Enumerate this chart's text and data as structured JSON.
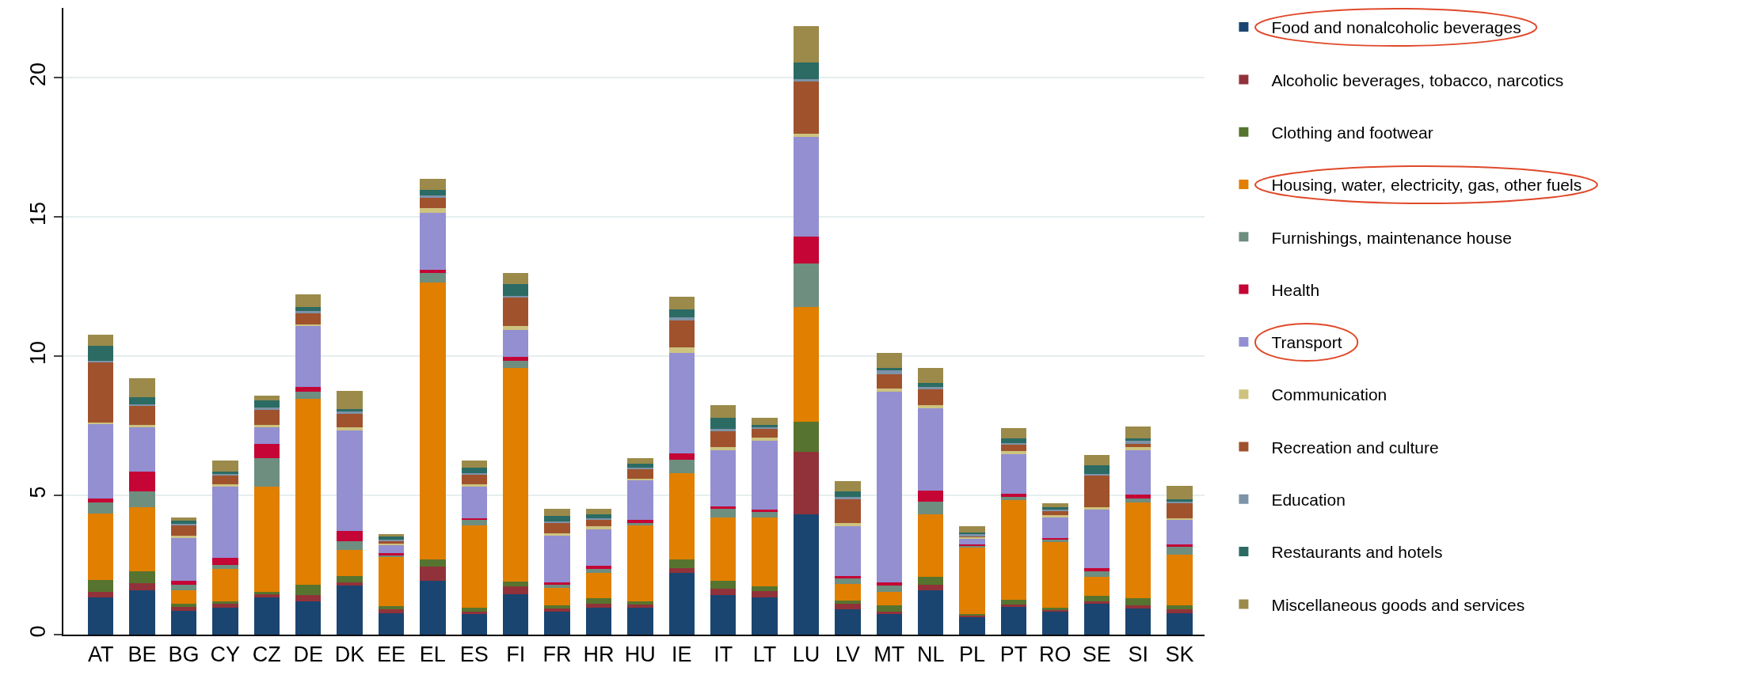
{
  "chart_data": {
    "type": "bar",
    "stacked": true,
    "categories": [
      "AT",
      "BE",
      "BG",
      "CY",
      "CZ",
      "DE",
      "DK",
      "EE",
      "EL",
      "ES",
      "FI",
      "FR",
      "HR",
      "HU",
      "IE",
      "IT",
      "LT",
      "LU",
      "LV",
      "MT",
      "NL",
      "PL",
      "PT",
      "RO",
      "SE",
      "SI",
      "SK"
    ],
    "series": [
      {
        "name": "Food and nonalcoholic beverages",
        "color": "#1a4570",
        "values": [
          1.33,
          1.59,
          0.85,
          0.96,
          1.33,
          1.18,
          1.77,
          0.78,
          1.93,
          0.73,
          1.45,
          0.82,
          0.96,
          0.97,
          2.23,
          1.41,
          1.33,
          4.33,
          0.9,
          0.73,
          1.6,
          0.63,
          1.0,
          0.82,
          1.11,
          0.93,
          0.78
        ]
      },
      {
        "name": "Alcoholic beverages, tobacco, narcotics",
        "color": "#91323a",
        "values": [
          0.21,
          0.27,
          0.14,
          0.15,
          0.11,
          0.25,
          0.11,
          0.13,
          0.5,
          0.08,
          0.27,
          0.11,
          0.16,
          0.12,
          0.17,
          0.24,
          0.23,
          2.22,
          0.21,
          0.08,
          0.18,
          0.04,
          0.08,
          0.06,
          0.09,
          0.12,
          0.12
        ]
      },
      {
        "name": "Clothing and footwear",
        "color": "#56742f",
        "values": [
          0.41,
          0.42,
          0.12,
          0.09,
          0.09,
          0.37,
          0.23,
          0.12,
          0.28,
          0.16,
          0.18,
          0.12,
          0.18,
          0.11,
          0.3,
          0.28,
          0.16,
          1.08,
          0.12,
          0.24,
          0.3,
          0.06,
          0.18,
          0.09,
          0.18,
          0.25,
          0.15
        ]
      },
      {
        "name": "Housing, water, electricity, gas, other fuels",
        "color": "#e17f00",
        "values": [
          2.39,
          2.28,
          0.48,
          1.16,
          3.78,
          6.66,
          0.93,
          1.77,
          9.93,
          2.96,
          7.68,
          0.63,
          0.93,
          2.73,
          3.1,
          2.27,
          2.48,
          4.12,
          0.6,
          0.48,
          2.25,
          2.4,
          3.57,
          2.36,
          0.7,
          3.45,
          1.83
        ]
      },
      {
        "name": "Furnishings, maintenance house",
        "color": "#6e8e80",
        "values": [
          0.4,
          0.57,
          0.21,
          0.14,
          1.02,
          0.27,
          0.32,
          0.04,
          0.33,
          0.18,
          0.24,
          0.1,
          0.12,
          0.07,
          0.48,
          0.33,
          0.21,
          1.58,
          0.18,
          0.22,
          0.45,
          0.05,
          0.12,
          0.07,
          0.2,
          0.15,
          0.27
        ]
      },
      {
        "name": "Health",
        "color": "#c40535",
        "values": [
          0.15,
          0.72,
          0.14,
          0.26,
          0.51,
          0.15,
          0.36,
          0.08,
          0.13,
          0.07,
          0.15,
          0.09,
          0.12,
          0.12,
          0.24,
          0.07,
          0.09,
          0.97,
          0.09,
          0.12,
          0.39,
          0.07,
          0.1,
          0.08,
          0.1,
          0.12,
          0.1
        ]
      },
      {
        "name": "Transport",
        "color": "#938fd1",
        "values": [
          2.66,
          1.6,
          1.53,
          2.55,
          0.61,
          2.19,
          3.62,
          0.28,
          2.04,
          1.14,
          0.96,
          1.68,
          1.31,
          1.41,
          3.6,
          2.03,
          2.46,
          3.57,
          1.8,
          6.86,
          2.96,
          0.2,
          1.43,
          0.72,
          2.1,
          1.61,
          0.86
        ]
      },
      {
        "name": "Communication",
        "color": "#cdc37f",
        "values": [
          0.07,
          0.07,
          0.07,
          0.08,
          0.07,
          0.08,
          0.09,
          0.06,
          0.16,
          0.08,
          0.15,
          0.08,
          0.1,
          0.08,
          0.18,
          0.1,
          0.1,
          0.11,
          0.1,
          0.1,
          0.12,
          0.06,
          0.12,
          0.1,
          0.08,
          0.1,
          0.07
        ]
      },
      {
        "name": "Recreation and culture",
        "color": "#a0522d",
        "values": [
          2.15,
          0.68,
          0.39,
          0.34,
          0.55,
          0.38,
          0.49,
          0.1,
          0.38,
          0.33,
          1.02,
          0.37,
          0.23,
          0.34,
          0.97,
          0.57,
          0.32,
          1.87,
          0.86,
          0.53,
          0.55,
          0.04,
          0.22,
          0.15,
          1.14,
          0.12,
          0.53
        ]
      },
      {
        "name": "Education",
        "color": "#7d93a8",
        "values": [
          0.07,
          0.06,
          0.06,
          0.05,
          0.07,
          0.08,
          0.08,
          0.06,
          0.08,
          0.07,
          0.07,
          0.06,
          0.07,
          0.05,
          0.11,
          0.08,
          0.07,
          0.09,
          0.07,
          0.12,
          0.08,
          0.05,
          0.06,
          0.05,
          0.06,
          0.11,
          0.07
        ]
      },
      {
        "name": "Restaurants and hotels",
        "color": "#2b6b63",
        "values": [
          0.52,
          0.27,
          0.1,
          0.08,
          0.27,
          0.15,
          0.1,
          0.09,
          0.22,
          0.2,
          0.41,
          0.2,
          0.15,
          0.13,
          0.3,
          0.4,
          0.08,
          0.6,
          0.2,
          0.1,
          0.15,
          0.07,
          0.17,
          0.07,
          0.31,
          0.09,
          0.08
        ]
      },
      {
        "name": "Miscellaneous goods and services",
        "color": "#9b8a4a",
        "values": [
          0.4,
          0.67,
          0.11,
          0.39,
          0.16,
          0.46,
          0.65,
          0.1,
          0.37,
          0.25,
          0.39,
          0.27,
          0.2,
          0.2,
          0.45,
          0.45,
          0.25,
          1.3,
          0.37,
          0.54,
          0.55,
          0.23,
          0.36,
          0.14,
          0.38,
          0.43,
          0.49
        ]
      }
    ],
    "ylim": [
      0,
      22.5
    ],
    "yticks": [
      0,
      5,
      10,
      15,
      20
    ],
    "grid": "y",
    "legend": "right"
  }
}
